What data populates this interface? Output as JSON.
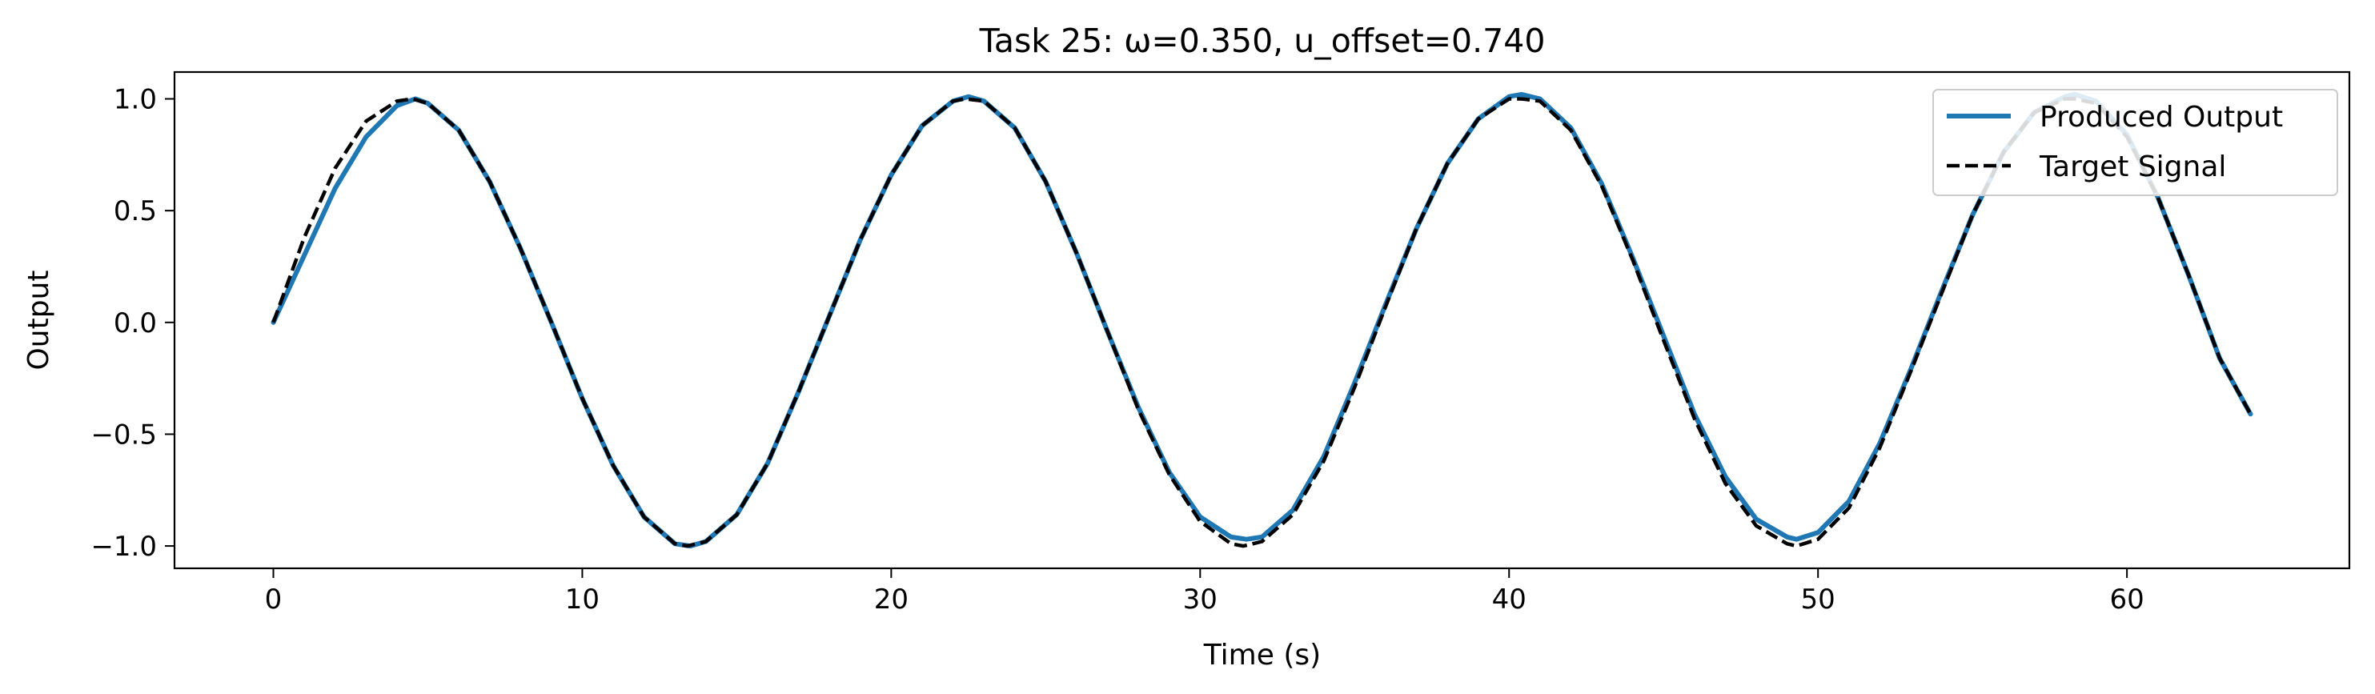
{
  "chart_data": {
    "type": "line",
    "title": "Task 25: ω=0.350, u_offset=0.740",
    "xlabel": "Time (s)",
    "ylabel": "Output",
    "xlim": [
      -3.2,
      67.2
    ],
    "ylim": [
      -1.1,
      1.12
    ],
    "x_ticks": [
      0,
      10,
      20,
      30,
      40,
      50,
      60
    ],
    "y_ticks": [
      -1.0,
      -0.5,
      0.0,
      0.5,
      1.0
    ],
    "x_tick_labels": [
      "0",
      "10",
      "20",
      "30",
      "40",
      "50",
      "60"
    ],
    "y_tick_labels": [
      "−1.0",
      "−0.5",
      "0.0",
      "0.5",
      "1.0"
    ],
    "grid": false,
    "legend_position": "top-right",
    "series": [
      {
        "name": "Produced Output",
        "color": "#1f77b4",
        "style": "solid",
        "x": [
          0,
          1,
          2,
          3,
          4,
          4.6,
          5,
          6,
          7,
          8,
          9,
          10,
          11,
          12,
          13,
          13.5,
          14,
          15,
          16,
          17,
          18,
          19,
          20,
          21,
          22,
          22.5,
          23,
          24,
          25,
          26,
          27,
          28,
          29,
          30,
          31,
          31.5,
          32,
          33,
          34,
          35,
          36,
          37,
          38,
          39,
          40,
          40.4,
          41,
          42,
          43,
          44,
          45,
          46,
          47,
          48,
          49,
          49.3,
          50,
          51,
          52,
          53,
          54,
          55,
          56,
          57,
          58,
          58.3,
          59,
          60,
          61,
          62,
          63,
          64
        ],
        "y": [
          0.0,
          0.3,
          0.6,
          0.83,
          0.97,
          1.0,
          0.98,
          0.86,
          0.63,
          0.33,
          0.0,
          -0.34,
          -0.64,
          -0.87,
          -0.99,
          -1.0,
          -0.98,
          -0.86,
          -0.63,
          -0.31,
          0.03,
          0.37,
          0.66,
          0.88,
          0.99,
          1.01,
          0.99,
          0.87,
          0.63,
          0.31,
          -0.04,
          -0.38,
          -0.67,
          -0.87,
          -0.96,
          -0.97,
          -0.96,
          -0.84,
          -0.6,
          -0.27,
          0.08,
          0.42,
          0.71,
          0.91,
          1.01,
          1.02,
          1.0,
          0.87,
          0.62,
          0.29,
          -0.06,
          -0.41,
          -0.69,
          -0.88,
          -0.96,
          -0.97,
          -0.94,
          -0.8,
          -0.54,
          -0.21,
          0.14,
          0.48,
          0.76,
          0.94,
          1.01,
          1.02,
          0.99,
          0.84,
          0.56,
          0.21,
          -0.16,
          -0.41
        ]
      },
      {
        "name": "Target Signal",
        "color": "#000000",
        "style": "dashed",
        "x": [
          0,
          1,
          2,
          3,
          4,
          4.5,
          5,
          6,
          7,
          8,
          9,
          10,
          11,
          12,
          13,
          13.4,
          14,
          15,
          16,
          17,
          18,
          19,
          20,
          21,
          22,
          22.4,
          23,
          24,
          25,
          26,
          27,
          28,
          29,
          30,
          31,
          31.4,
          32,
          33,
          34,
          35,
          36,
          37,
          38,
          39,
          40,
          40.4,
          41,
          42,
          43,
          44,
          45,
          46,
          47,
          48,
          49,
          49.3,
          50,
          51,
          52,
          53,
          54,
          55,
          56,
          57,
          58,
          58.3,
          59,
          60,
          61,
          62,
          63,
          64
        ],
        "y": [
          0.0,
          0.38,
          0.69,
          0.9,
          0.99,
          1.0,
          0.98,
          0.86,
          0.63,
          0.33,
          0.0,
          -0.34,
          -0.64,
          -0.87,
          -0.99,
          -1.0,
          -0.98,
          -0.86,
          -0.63,
          -0.31,
          0.03,
          0.37,
          0.66,
          0.88,
          0.99,
          1.0,
          0.99,
          0.87,
          0.63,
          0.31,
          -0.04,
          -0.39,
          -0.68,
          -0.89,
          -0.99,
          -1.0,
          -0.98,
          -0.86,
          -0.62,
          -0.29,
          0.07,
          0.42,
          0.71,
          0.91,
          1.0,
          1.0,
          0.99,
          0.86,
          0.61,
          0.28,
          -0.08,
          -0.43,
          -0.72,
          -0.91,
          -0.99,
          -1.0,
          -0.97,
          -0.83,
          -0.56,
          -0.22,
          0.13,
          0.48,
          0.76,
          0.94,
          1.0,
          1.0,
          0.98,
          0.83,
          0.56,
          0.21,
          -0.16,
          -0.41
        ]
      }
    ]
  }
}
